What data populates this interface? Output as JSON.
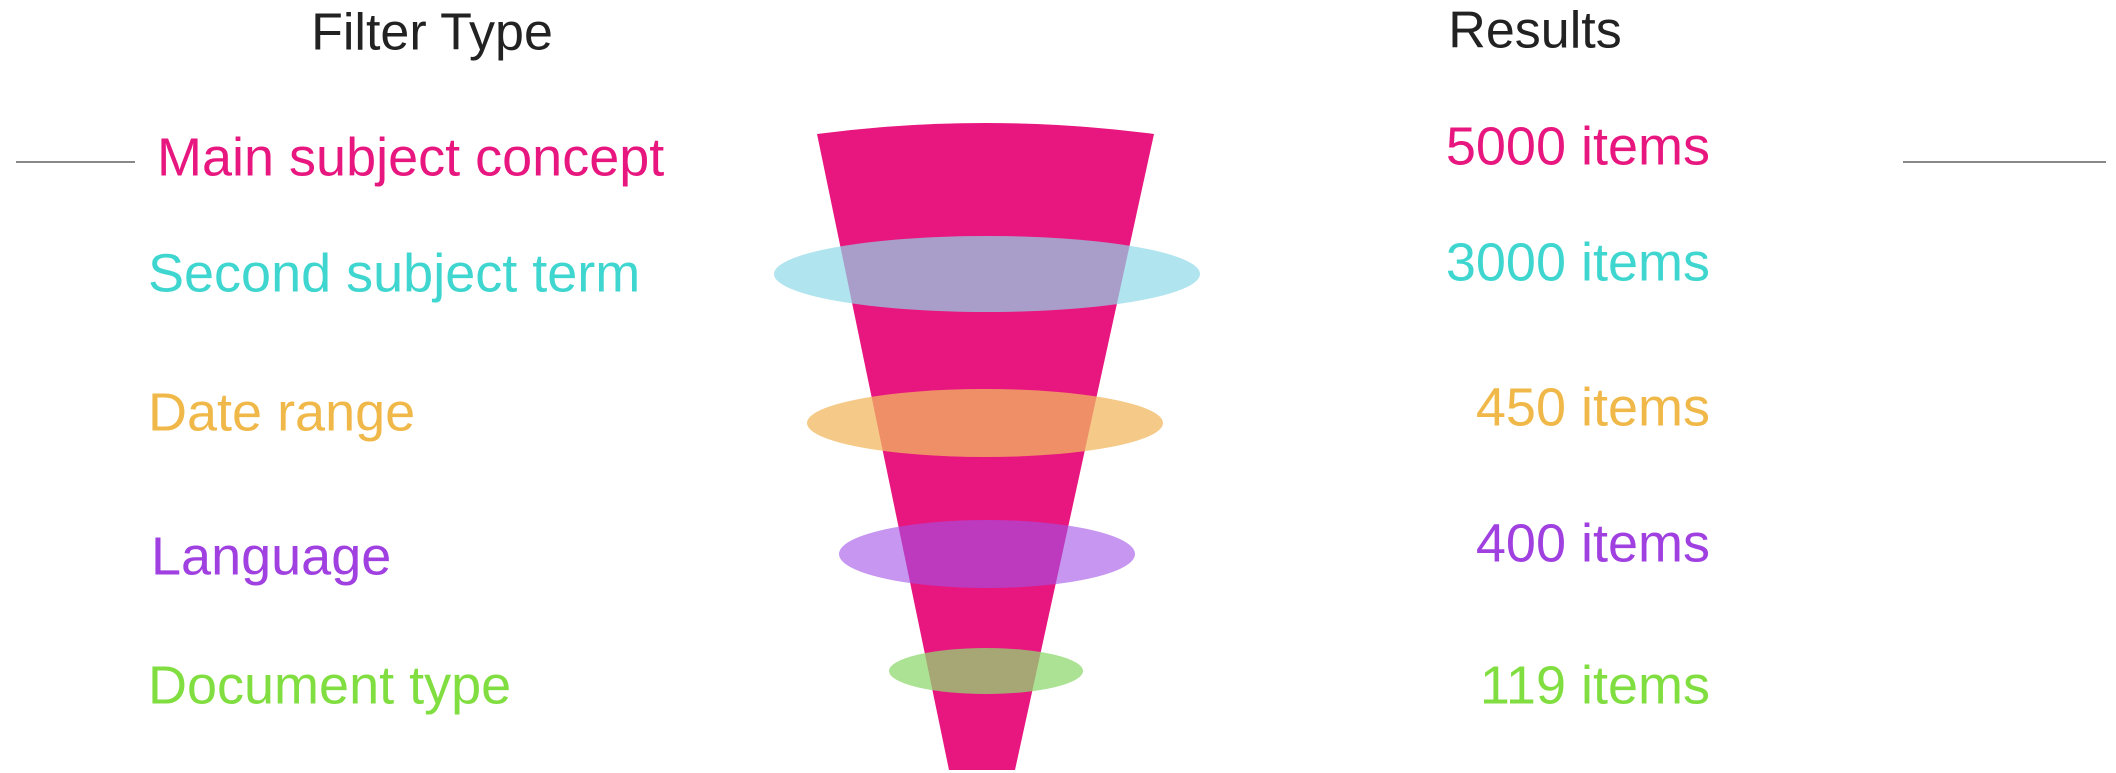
{
  "header": {
    "filter_type": "Filter Type",
    "results": "Results"
  },
  "rows": [
    {
      "label": "Main subject concept",
      "result": "5000 items"
    },
    {
      "label": "Second subject term",
      "result": "3000 items"
    },
    {
      "label": "Date range",
      "result": "450 items"
    },
    {
      "label": "Language",
      "result": "400 items"
    },
    {
      "label": "Document type",
      "result": "119 items"
    }
  ]
}
